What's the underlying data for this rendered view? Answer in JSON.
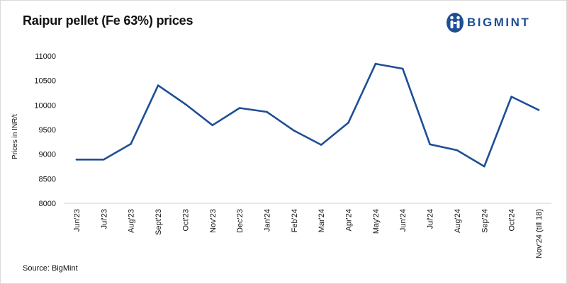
{
  "title": "Raipur pellet (Fe 63%) prices",
  "logo": {
    "text": "BIGMINT",
    "icon": "bigmint-logo-icon"
  },
  "source": "Source: BigMint",
  "chart_data": {
    "type": "line",
    "title": "Raipur pellet (Fe 63%) prices",
    "ylabel": "Prices in INR/t",
    "xlabel": "",
    "ylim": [
      8000,
      11000
    ],
    "yticks": [
      8000,
      8500,
      9000,
      9500,
      10000,
      10500,
      11000
    ],
    "grid": false,
    "legend": "none",
    "categories": [
      "Jun'23",
      "Jul'23",
      "Aug'23",
      "Sept'23",
      "Oct'23",
      "Nov'23",
      "Dec'23",
      "Jan'24",
      "Feb'24",
      "Mar'24",
      "Apr'24",
      "May'24",
      "Jun'24",
      "Jul'24",
      "Aug'24",
      "Sep'24",
      "Oct'24",
      "Nov'24 (till 18)"
    ],
    "series": [
      {
        "color": "#1f4e96",
        "values": [
          8890,
          8890,
          9210,
          10400,
          10020,
          9590,
          9940,
          9860,
          9480,
          9190,
          9640,
          10840,
          10740,
          9200,
          9080,
          8750,
          10170,
          9900
        ]
      }
    ]
  }
}
